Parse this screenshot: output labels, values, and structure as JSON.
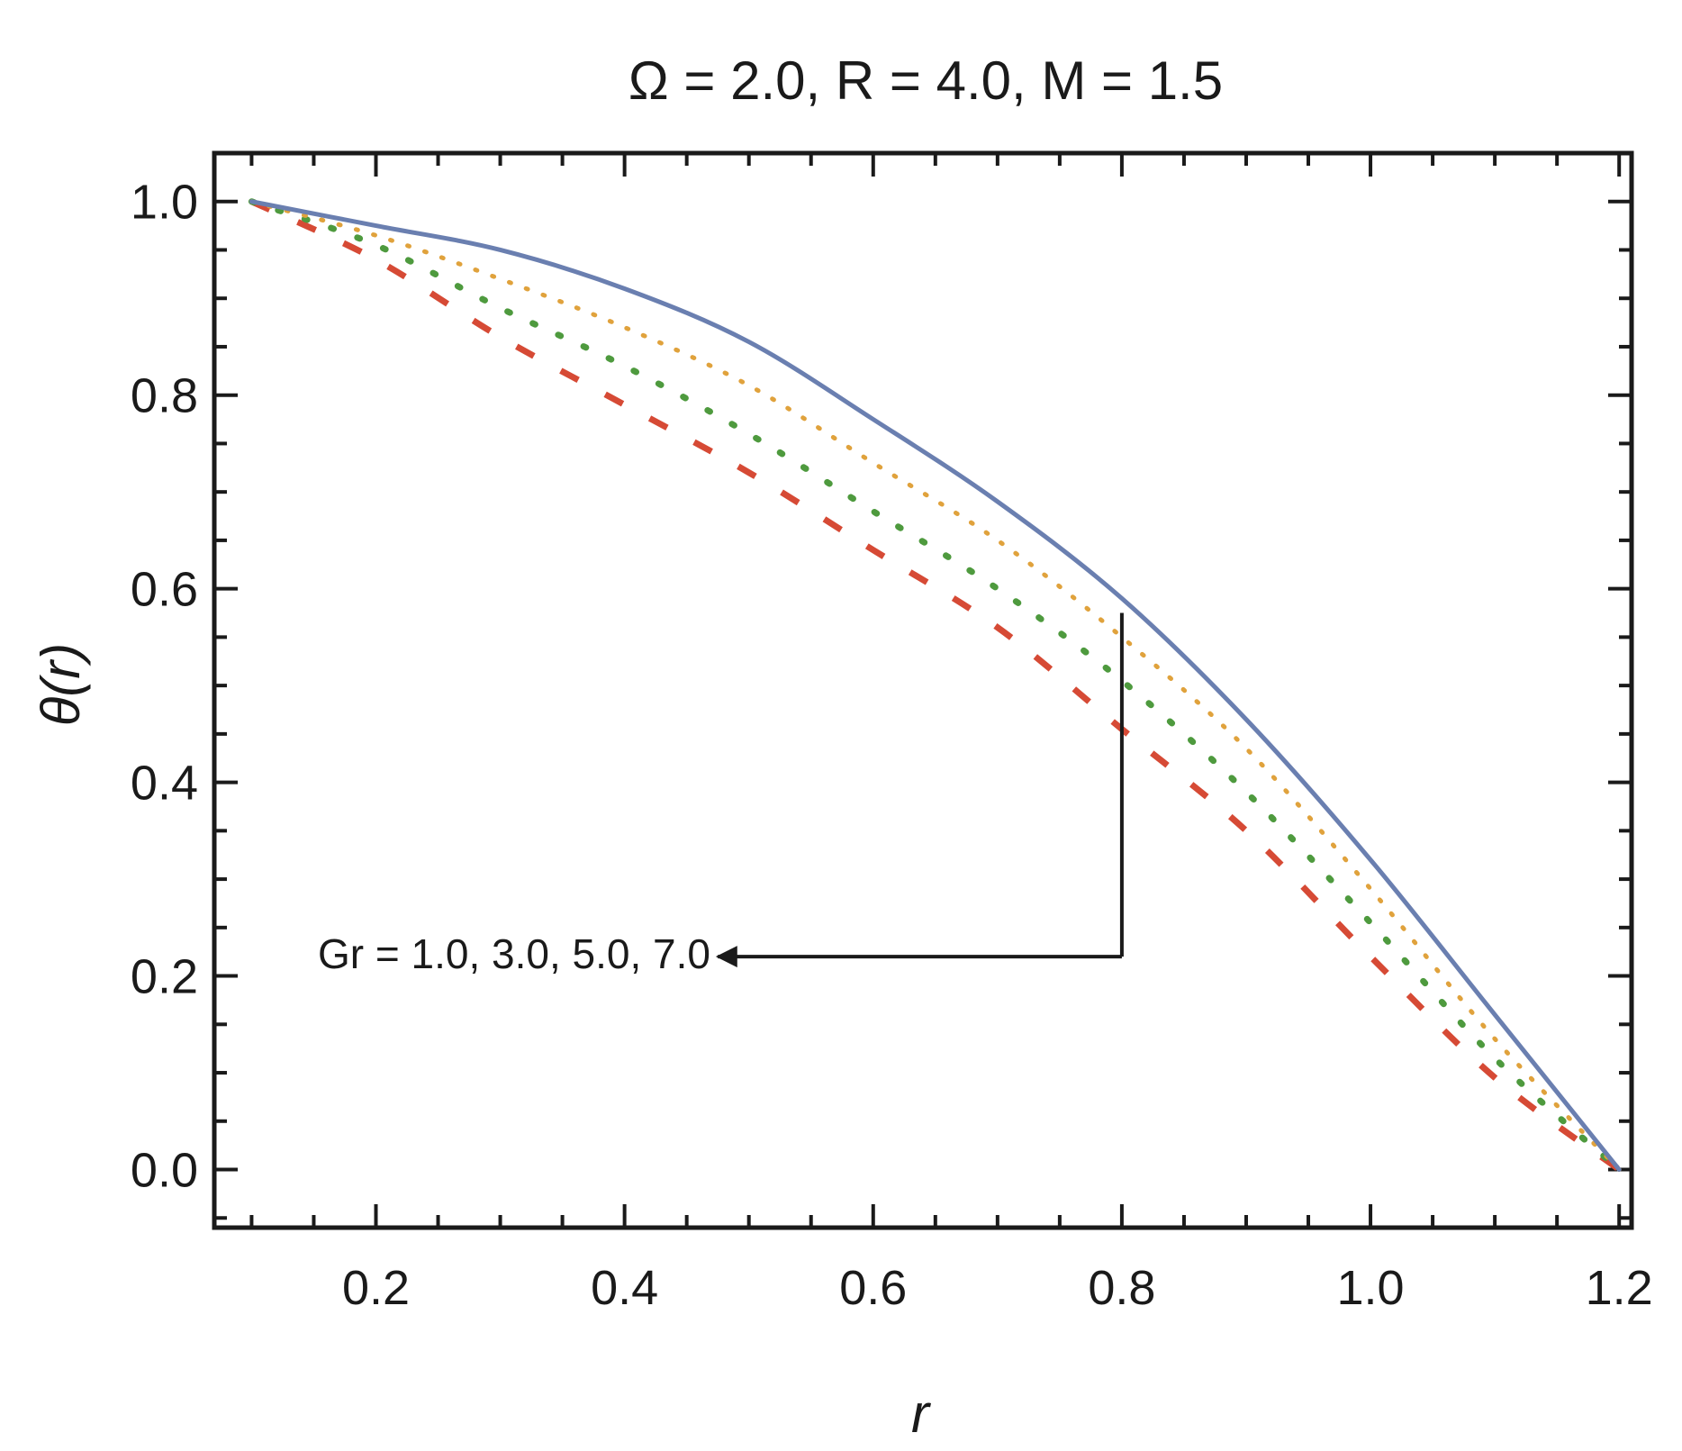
{
  "chart_data": {
    "type": "line",
    "title": "Ω = 2.0, R = 4.0, M = 1.5",
    "xlabel": "r",
    "ylabel": "θ(r)",
    "xlim": [
      0.07,
      1.21
    ],
    "ylim": [
      -0.06,
      1.05
    ],
    "x_ticks": [
      0.2,
      0.4,
      0.6,
      0.8,
      1.0,
      1.2
    ],
    "x_tick_labels": [
      "0.2",
      "0.4",
      "0.6",
      "0.8",
      "1.0",
      "1.2"
    ],
    "y_ticks": [
      0.0,
      0.2,
      0.4,
      0.6,
      0.8,
      1.0
    ],
    "y_tick_labels": [
      "0.0",
      "0.2",
      "0.4",
      "0.6",
      "0.8",
      "1.0"
    ],
    "grid": false,
    "x": [
      0.1,
      0.2,
      0.3,
      0.4,
      0.5,
      0.6,
      0.7,
      0.8,
      0.9,
      1.0,
      1.1,
      1.2
    ],
    "series": [
      {
        "values": [
          1.0,
          0.975,
          0.95,
          0.91,
          0.855,
          0.775,
          0.69,
          0.59,
          0.465,
          0.32,
          0.16,
          0.0
        ],
        "color": "#6a7fb0",
        "dash": "solid"
      },
      {
        "values": [
          1.0,
          0.965,
          0.92,
          0.87,
          0.81,
          0.73,
          0.65,
          0.55,
          0.435,
          0.29,
          0.135,
          0.0
        ],
        "color": "#e0a23c",
        "dash": "dotted"
      },
      {
        "values": [
          1.0,
          0.955,
          0.89,
          0.83,
          0.76,
          0.68,
          0.6,
          0.505,
          0.39,
          0.255,
          0.115,
          0.0
        ],
        "color": "#4e9a3e",
        "dash": "dotted-coarse"
      },
      {
        "values": [
          1.0,
          0.94,
          0.86,
          0.79,
          0.72,
          0.64,
          0.56,
          0.455,
          0.35,
          0.22,
          0.095,
          0.0
        ],
        "color": "#d64a35",
        "dash": "dashed"
      }
    ],
    "annotation": {
      "text": "Gr = 1.0, 3.0, 5.0, 7.0",
      "vertical_x": 0.8,
      "vertical_y_top": 0.575,
      "vertical_y_bottom": 0.22,
      "arrow_tip_x": 0.475
    }
  }
}
